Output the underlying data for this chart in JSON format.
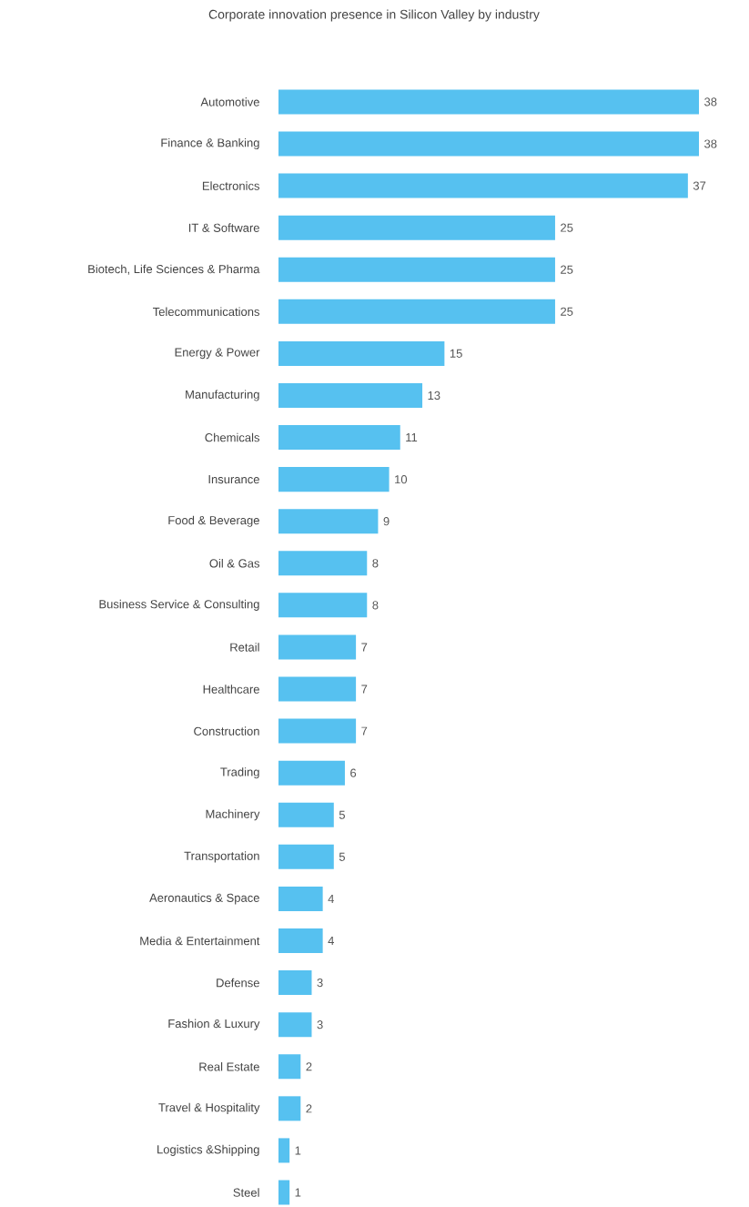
{
  "chart_data": {
    "type": "bar",
    "orientation": "horizontal",
    "title": "Corporate innovation presence in Silicon Valley by industry",
    "categories": [
      "Automotive",
      "Finance & Banking",
      "Electronics",
      "IT & Software",
      "Biotech, Life Sciences & Pharma",
      "Telecommunications",
      "Energy & Power",
      "Manufacturing",
      "Chemicals",
      "Insurance",
      "Food & Beverage",
      "Oil & Gas",
      "Business Service & Consulting",
      "Retail",
      "Healthcare",
      "Construction",
      "Trading",
      "Machinery",
      "Transportation",
      "Aeronautics & Space",
      "Media & Entertainment",
      "Defense",
      "Fashion & Luxury",
      "Real Estate",
      "Travel & Hospitality",
      "Logistics &Shipping",
      "Steel"
    ],
    "values": [
      38,
      38,
      37,
      25,
      25,
      25,
      15,
      13,
      11,
      10,
      9,
      8,
      8,
      7,
      7,
      7,
      6,
      5,
      5,
      4,
      4,
      3,
      3,
      2,
      2,
      1,
      1
    ],
    "color": "#56c1f0",
    "data_labels": true
  }
}
